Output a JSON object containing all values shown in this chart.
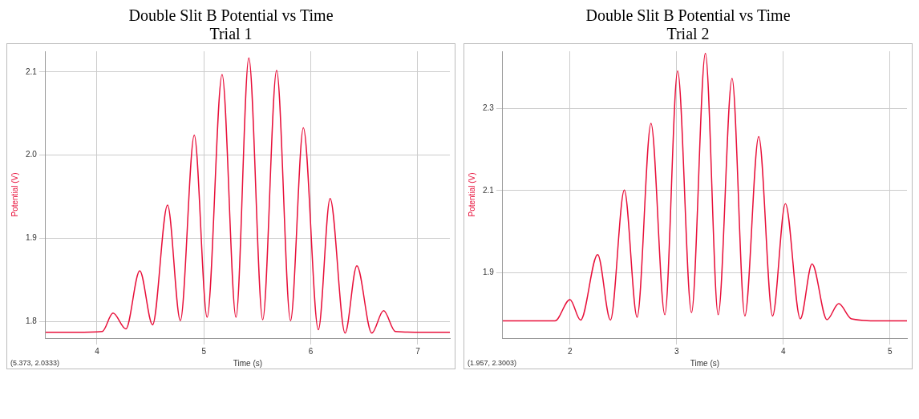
{
  "chart_data": [
    {
      "type": "line",
      "title": "Double Slit B Potential vs Time",
      "subtitle": "Trial 1",
      "xlabel": "Time (s)",
      "ylabel": "Potential (V)",
      "xlim": [
        3.52,
        7.3
      ],
      "ylim": [
        1.78,
        2.125
      ],
      "xticks": [
        4,
        5,
        6,
        7
      ],
      "yticks": [
        1.8,
        1.9,
        {
          "value": 2,
          "label": "2.0"
        },
        2.1
      ],
      "grid": true,
      "legend": false,
      "marker": "none",
      "line_style": "solid",
      "annotations": [
        "(5.373, 2.0333)"
      ],
      "series": [
        {
          "color": "#e8103a",
          "x": [
            3.52,
            3.8,
            4.05,
            4.15,
            4.27,
            4.4,
            4.52,
            4.66,
            4.78,
            4.91,
            5.03,
            5.17,
            5.3,
            5.42,
            5.55,
            5.68,
            5.81,
            5.93,
            6.07,
            6.18,
            6.32,
            6.43,
            6.57,
            6.68,
            6.79,
            7.05,
            7.3
          ],
          "values": [
            1.787,
            1.787,
            1.788,
            1.81,
            1.791,
            1.861,
            1.796,
            1.94,
            1.801,
            2.024,
            1.805,
            2.097,
            1.805,
            2.117,
            1.802,
            2.102,
            1.801,
            2.033,
            1.79,
            1.948,
            1.786,
            1.867,
            1.786,
            1.813,
            1.788,
            1.787,
            1.787
          ]
        }
      ]
    },
    {
      "type": "line",
      "title": "Double Slit B Potential vs Time",
      "subtitle": "Trial 2",
      "xlabel": "Time (s)",
      "ylabel": "Potential (V)",
      "xlim": [
        1.37,
        5.16
      ],
      "ylim": [
        1.74,
        2.44
      ],
      "xticks": [
        2,
        3,
        4,
        5
      ],
      "yticks": [
        1.9,
        2.1,
        2.3
      ],
      "grid": true,
      "legend": false,
      "marker": "none",
      "line_style": "solid",
      "annotations": [
        "(1.957, 2.3003)"
      ],
      "series": [
        {
          "color": "#e8103a",
          "x": [
            1.37,
            1.6,
            1.86,
            2.0,
            2.1,
            2.26,
            2.38,
            2.51,
            2.63,
            2.76,
            2.89,
            3.01,
            3.14,
            3.27,
            3.39,
            3.52,
            3.64,
            3.77,
            3.9,
            4.02,
            4.16,
            4.27,
            4.41,
            4.52,
            4.64,
            4.9,
            5.16
          ],
          "values": [
            1.782,
            1.782,
            1.782,
            1.834,
            1.784,
            1.944,
            1.784,
            2.101,
            1.791,
            2.264,
            1.797,
            2.392,
            1.802,
            2.435,
            1.797,
            2.374,
            1.794,
            2.232,
            1.794,
            2.068,
            1.787,
            1.921,
            1.785,
            1.824,
            1.787,
            1.782,
            1.782
          ]
        }
      ]
    }
  ]
}
